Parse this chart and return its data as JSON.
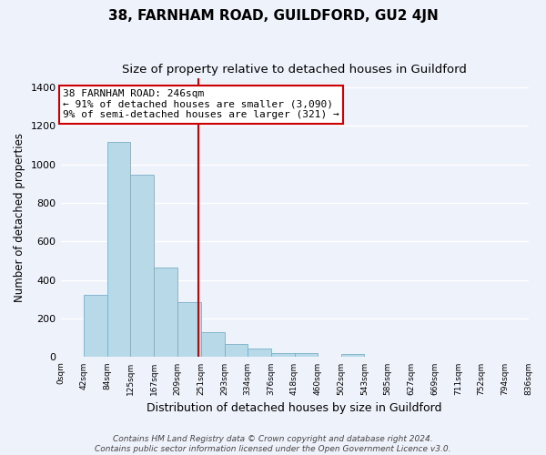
{
  "title": "38, FARNHAM ROAD, GUILDFORD, GU2 4JN",
  "subtitle": "Size of property relative to detached houses in Guildford",
  "xlabel": "Distribution of detached houses by size in Guildford",
  "ylabel": "Number of detached properties",
  "bar_color": "#b8d9e8",
  "bar_edge_color": "#7ab0c8",
  "background_color": "#eef2fa",
  "grid_color": "#ffffff",
  "bin_edges": [
    0,
    42,
    84,
    125,
    167,
    209,
    251,
    293,
    334,
    376,
    418,
    460,
    502,
    543,
    585,
    627,
    669,
    711,
    752,
    794,
    836
  ],
  "bin_labels": [
    "0sqm",
    "42sqm",
    "84sqm",
    "125sqm",
    "167sqm",
    "209sqm",
    "251sqm",
    "293sqm",
    "334sqm",
    "376sqm",
    "418sqm",
    "460sqm",
    "502sqm",
    "543sqm",
    "585sqm",
    "627sqm",
    "669sqm",
    "711sqm",
    "752sqm",
    "794sqm",
    "836sqm"
  ],
  "bar_heights": [
    0,
    325,
    1115,
    945,
    465,
    285,
    130,
    70,
    45,
    20,
    20,
    0,
    15,
    0,
    0,
    0,
    0,
    0,
    0,
    0
  ],
  "ylim": [
    0,
    1450
  ],
  "xlim": [
    0,
    836
  ],
  "property_value": 246,
  "vline_color": "#cc0000",
  "ann_line1": "38 FARNHAM ROAD: 246sqm",
  "ann_line2": "← 91% of detached houses are smaller (3,090)",
  "ann_line3": "9% of semi-detached houses are larger (321) →",
  "annotation_box_color": "#ffffff",
  "annotation_box_edge": "#cc0000",
  "footnote": "Contains HM Land Registry data © Crown copyright and database right 2024.\nContains public sector information licensed under the Open Government Licence v3.0.",
  "title_fontsize": 11,
  "subtitle_fontsize": 9.5,
  "annotation_fontsize": 8,
  "footnote_fontsize": 6.5,
  "yticks": [
    0,
    200,
    400,
    600,
    800,
    1000,
    1200,
    1400
  ]
}
